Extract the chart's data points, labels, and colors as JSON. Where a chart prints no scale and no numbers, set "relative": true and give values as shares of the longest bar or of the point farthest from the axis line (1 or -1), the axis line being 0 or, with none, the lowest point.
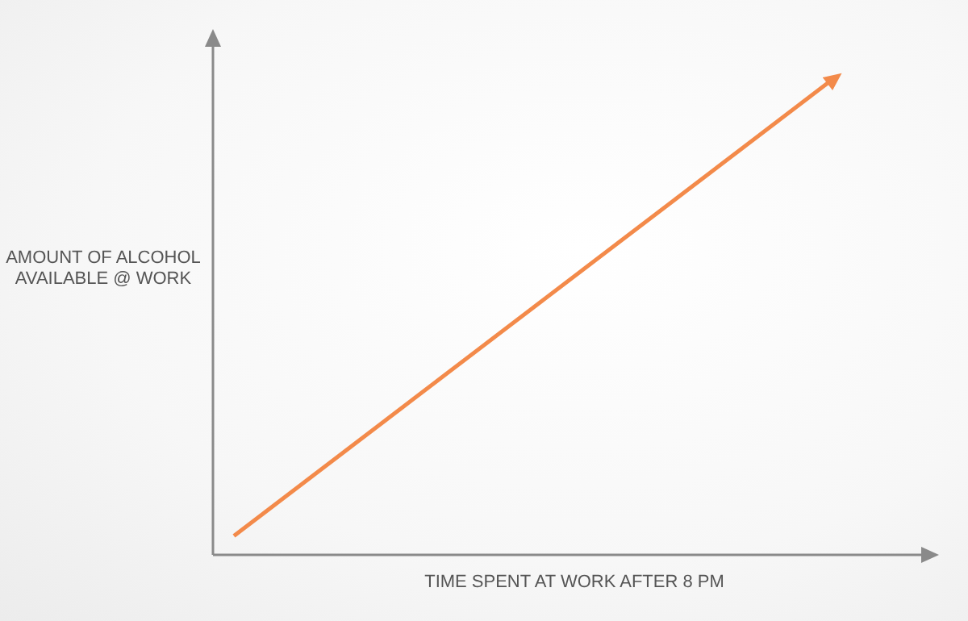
{
  "chart_data": {
    "type": "line",
    "relative": true,
    "xlabel": "TIME SPENT AT WORK AFTER 8 PM",
    "ylabel": "AMOUNT OF ALCOHOL AVAILABLE @ WORK",
    "categories": [
      null,
      null
    ],
    "series": [
      {
        "color": "#f38a4a",
        "values": [
          0.04,
          1
        ]
      }
    ]
  }
}
